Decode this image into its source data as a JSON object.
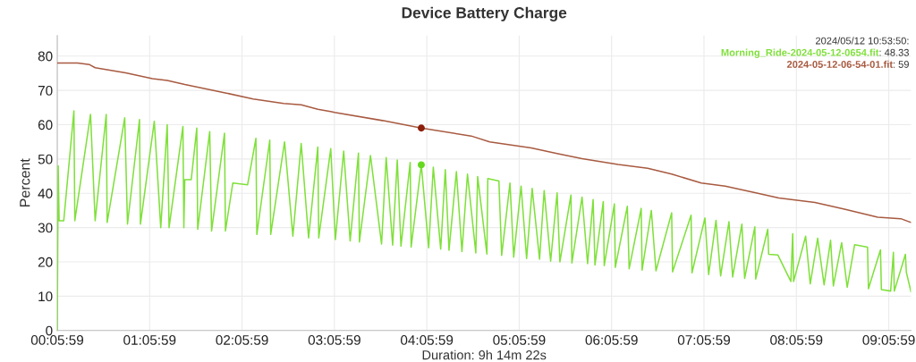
{
  "chart_data": {
    "type": "line",
    "title": "Device Battery Charge",
    "xlabel": "Duration: 9h 14m 22s",
    "ylabel": "Percent",
    "xlim": [
      0.0997,
      9.34
    ],
    "ylim": [
      0,
      86
    ],
    "xticks": [
      {
        "value": 0.0997,
        "label": "00:05:59"
      },
      {
        "value": 1.0997,
        "label": "01:05:59"
      },
      {
        "value": 2.0997,
        "label": "02:05:59"
      },
      {
        "value": 3.0997,
        "label": "03:05:59"
      },
      {
        "value": 4.0997,
        "label": "04:05:59"
      },
      {
        "value": 5.0997,
        "label": "05:05:59"
      },
      {
        "value": 6.0997,
        "label": "06:05:59"
      },
      {
        "value": 7.0997,
        "label": "07:05:59"
      },
      {
        "value": 8.0997,
        "label": "08:05:59"
      },
      {
        "value": 9.0997,
        "label": "09:05:59"
      }
    ],
    "yticks": [
      0,
      10,
      20,
      30,
      40,
      50,
      60,
      70,
      80
    ],
    "grid": true,
    "legend": false,
    "marker": "none",
    "line_style": "solid",
    "annotations": [
      "2024/05/12 10:53:50:",
      ": 48.33",
      ": 59"
    ],
    "series": [
      {
        "name": "Morning_Ride-2024-05-12-0654.fit",
        "color": "#7fe03a",
        "x": [
          0.1,
          0.11,
          0.12,
          0.17,
          0.28,
          0.29,
          0.46,
          0.51,
          0.63,
          0.64,
          0.83,
          0.86,
          0.99,
          1.0,
          1.15,
          1.22,
          1.29,
          1.31,
          1.46,
          1.47,
          1.48,
          1.55,
          1.61,
          1.62,
          1.75,
          1.77,
          1.91,
          1.92,
          2.0,
          2.16,
          2.25,
          2.26,
          2.4,
          2.41,
          2.56,
          2.65,
          2.74,
          2.82,
          2.92,
          2.93,
          3.06,
          3.11,
          3.2,
          3.27,
          3.36,
          3.37,
          3.49,
          3.61,
          3.66,
          3.73,
          3.78,
          3.82,
          3.92,
          3.93,
          4.04,
          4.12,
          4.17,
          4.25,
          4.3,
          4.34,
          4.42,
          4.48,
          4.54,
          4.63,
          4.65,
          4.75,
          4.76,
          4.88,
          4.91,
          5.0,
          5.04,
          5.12,
          5.18,
          5.24,
          5.32,
          5.37,
          5.44,
          5.51,
          5.54,
          5.66,
          5.67,
          5.78,
          5.84,
          5.9,
          5.92,
          6.01,
          6.02,
          6.13,
          6.14,
          6.27,
          6.29,
          6.42,
          6.43,
          6.53,
          6.58,
          6.75,
          6.76,
          6.96,
          6.97,
          7.11,
          7.15,
          7.23,
          7.28,
          7.37,
          7.41,
          7.51,
          7.54,
          7.65,
          7.66,
          7.79,
          7.8,
          7.9,
          8.04,
          8.06,
          8.07,
          8.2,
          8.25,
          8.33,
          8.4,
          8.47,
          8.5,
          8.59,
          8.65,
          8.73,
          8.87,
          8.88,
          9.01,
          9.02,
          9.12,
          9.15,
          9.16,
          9.28,
          9.29,
          9.34
        ],
        "values": [
          0,
          48,
          32,
          32,
          64,
          32,
          63,
          32,
          63,
          31.5,
          62,
          31,
          61.5,
          31,
          61,
          30,
          60,
          30,
          59.5,
          30,
          44,
          44,
          59,
          29.5,
          58,
          29,
          57.5,
          29,
          43,
          42.5,
          56,
          28,
          55.5,
          28,
          55,
          27.5,
          54.5,
          27,
          53.5,
          27,
          53,
          26.5,
          52.3,
          26.1,
          51.7,
          25.8,
          51,
          25.2,
          50.4,
          24.9,
          49.7,
          24.6,
          49,
          24.3,
          48.3,
          24.1,
          47.6,
          23.7,
          46.9,
          23.4,
          46.3,
          23,
          45.6,
          22.6,
          44.9,
          22.3,
          44.3,
          43.6,
          21.9,
          43,
          21.4,
          42.1,
          21,
          41.4,
          20.8,
          40.8,
          20.2,
          40.1,
          20,
          39.5,
          19.7,
          38.9,
          19.5,
          38.2,
          19.1,
          37.6,
          18.9,
          36.9,
          18.4,
          36.2,
          18,
          35.6,
          17.6,
          35,
          17.4,
          34.3,
          17.1,
          33.6,
          16.8,
          32.8,
          16.3,
          32.1,
          15.9,
          31.7,
          15.6,
          31,
          15.2,
          30.2,
          15,
          29.5,
          22.2,
          22,
          14.3,
          28.2,
          14.3,
          27.5,
          13.6,
          26.9,
          13.3,
          26.3,
          13,
          25.6,
          12.6,
          25,
          24.3,
          12.2,
          23.5,
          11.9,
          11.5,
          22.8,
          11.5,
          22.2,
          17,
          11.3
        ]
      },
      {
        "name": "2024-05-12-06-54-01.fit",
        "color": "#a85a40",
        "x": [
          0.1,
          0.32,
          0.45,
          0.51,
          0.84,
          1.13,
          1.29,
          1.48,
          1.77,
          1.93,
          2.22,
          2.55,
          2.74,
          2.92,
          3.07,
          3.1,
          3.62,
          4.04,
          4.58,
          4.78,
          5.23,
          5.52,
          5.78,
          6.17,
          6.49,
          6.75,
          7.07,
          7.33,
          7.65,
          7.91,
          8.3,
          8.62,
          8.98,
          9.23,
          9.34
        ],
        "values": [
          78,
          78,
          77.5,
          76.6,
          75.1,
          73.4,
          72.9,
          71.7,
          70.1,
          69.2,
          67.5,
          66.2,
          65.8,
          64.5,
          63.8,
          63.6,
          61.2,
          59,
          56.7,
          55,
          53.2,
          51.5,
          50.1,
          48.4,
          47.3,
          45.6,
          43,
          42.1,
          40.2,
          38.6,
          37.3,
          35.4,
          33,
          32.6,
          31.5
        ]
      },
      {
        "type": "scatter",
        "marker": "circle",
        "color": "#66d91f",
        "x": [
          4.04
        ],
        "values": [
          48.3
        ]
      },
      {
        "type": "scatter",
        "marker": "circle",
        "color": "#8b1e0a",
        "x": [
          4.04
        ],
        "values": [
          59
        ]
      }
    ]
  }
}
